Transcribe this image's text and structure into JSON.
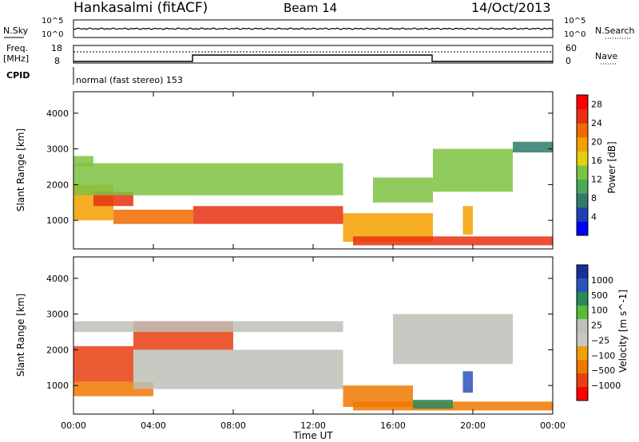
{
  "header": {
    "station": "Hankasalmi (fitACF)",
    "beam": "Beam 14",
    "date": "14/Oct/2013"
  },
  "noise_panel": {
    "left_label": "N.Sky",
    "right_label": "N.Search",
    "ticks": [
      "10^5",
      "10^0"
    ]
  },
  "freq_panel": {
    "label_line1": "Freq.",
    "label_line2": "[MHz]",
    "ticks": [
      "18",
      "8"
    ],
    "right_label": "Nave",
    "right_ticks": [
      "60",
      "0"
    ]
  },
  "cpid": {
    "label": "CPID",
    "mode_text": "normal (fast stereo) 153"
  },
  "colors": {
    "power_scale": [
      "#0000ff",
      "#1f3fb4",
      "#2f7a6a",
      "#47a85a",
      "#7fc241",
      "#e0d010",
      "#f4a000",
      "#f06a00",
      "#e83010",
      "#ff0000"
    ],
    "velocity_scale": [
      "#1a2d9a",
      "#2a55b8",
      "#2a8a5a",
      "#57bb3a",
      "#c0c0b8",
      "#c8c8c0",
      "#f0a000",
      "#f07800",
      "#e84010",
      "#ff0000"
    ],
    "ground_scatter": "#c0c0b8"
  },
  "chart_data": [
    {
      "type": "heatmap",
      "title": "",
      "xlabel": "",
      "ylabel": "Slant Range [km]",
      "x_ticks": [
        "00:00",
        "04:00",
        "08:00",
        "12:00",
        "16:00",
        "20:00",
        "00:00"
      ],
      "xlim": [
        0,
        24
      ],
      "y_ticks": [
        1000,
        2000,
        3000,
        4000
      ],
      "ylim": [
        200,
        4600
      ],
      "colorbar_label": "Power [dB]",
      "colorbar_ticks": [
        4,
        8,
        12,
        16,
        20,
        24,
        28
      ],
      "colorbar_range": [
        0,
        30
      ],
      "bands": [
        {
          "t0": 0,
          "t1": 2,
          "r0": 1000,
          "r1": 2000,
          "level": 20
        },
        {
          "t0": 1,
          "t1": 3,
          "r0": 1400,
          "r1": 1800,
          "level": 26
        },
        {
          "t0": 2,
          "t1": 6,
          "r0": 900,
          "r1": 1300,
          "level": 22
        },
        {
          "t0": 6,
          "t1": 13.5,
          "r0": 900,
          "r1": 1400,
          "level": 24
        },
        {
          "t0": 0,
          "t1": 13.5,
          "r0": 1700,
          "r1": 2600,
          "level": 14
        },
        {
          "t0": 0,
          "t1": 1,
          "r0": 2500,
          "r1": 2800,
          "level": 12
        },
        {
          "t0": 13.5,
          "t1": 18,
          "r0": 400,
          "r1": 1200,
          "level": 18
        },
        {
          "t0": 14,
          "t1": 24,
          "r0": 300,
          "r1": 550,
          "level": 26
        },
        {
          "t0": 15,
          "t1": 18,
          "r0": 1500,
          "r1": 2200,
          "level": 12
        },
        {
          "t0": 18,
          "t1": 22,
          "r0": 1800,
          "r1": 3000,
          "level": 12
        },
        {
          "t0": 22,
          "t1": 24,
          "r0": 2900,
          "r1": 3200,
          "level": 8
        },
        {
          "t0": 19.5,
          "t1": 20,
          "r0": 600,
          "r1": 1400,
          "level": 18
        }
      ]
    },
    {
      "type": "heatmap",
      "title": "",
      "xlabel": "Time UT",
      "ylabel": "Slant Range [km]",
      "x_ticks": [
        "00:00",
        "04:00",
        "08:00",
        "12:00",
        "16:00",
        "20:00",
        "00:00"
      ],
      "xlim": [
        0,
        24
      ],
      "y_ticks": [
        1000,
        2000,
        3000,
        4000
      ],
      "ylim": [
        200,
        4600
      ],
      "colorbar_label": "Velocity [m s^-1]",
      "colorbar_ticks": [
        "1000",
        "500",
        "100",
        "25",
        "−25",
        "−100",
        "−500",
        "−1000"
      ],
      "bands": [
        {
          "t0": 0,
          "t1": 3,
          "r0": 1100,
          "r1": 2100,
          "level": -500
        },
        {
          "t0": 0,
          "t1": 4,
          "r0": 700,
          "r1": 1100,
          "level": -100
        },
        {
          "t0": 3,
          "t1": 8,
          "r0": 2000,
          "r1": 2800,
          "level": -500
        },
        {
          "t0": 3,
          "t1": 13.5,
          "r0": 900,
          "r1": 2000,
          "level": 0
        },
        {
          "t0": 0,
          "t1": 13.5,
          "r0": 2500,
          "r1": 2800,
          "level": 0
        },
        {
          "t0": 13.5,
          "t1": 17,
          "r0": 400,
          "r1": 1000,
          "level": -100
        },
        {
          "t0": 14,
          "t1": 24,
          "r0": 300,
          "r1": 550,
          "level": -100
        },
        {
          "t0": 17,
          "t1": 19,
          "r0": 350,
          "r1": 600,
          "level": 100
        },
        {
          "t0": 16,
          "t1": 22,
          "r0": 1600,
          "r1": 3000,
          "level": 0
        },
        {
          "t0": 19.5,
          "t1": 20,
          "r0": 800,
          "r1": 1400,
          "level": 500
        }
      ]
    }
  ],
  "power_bands_data_note": ""
}
